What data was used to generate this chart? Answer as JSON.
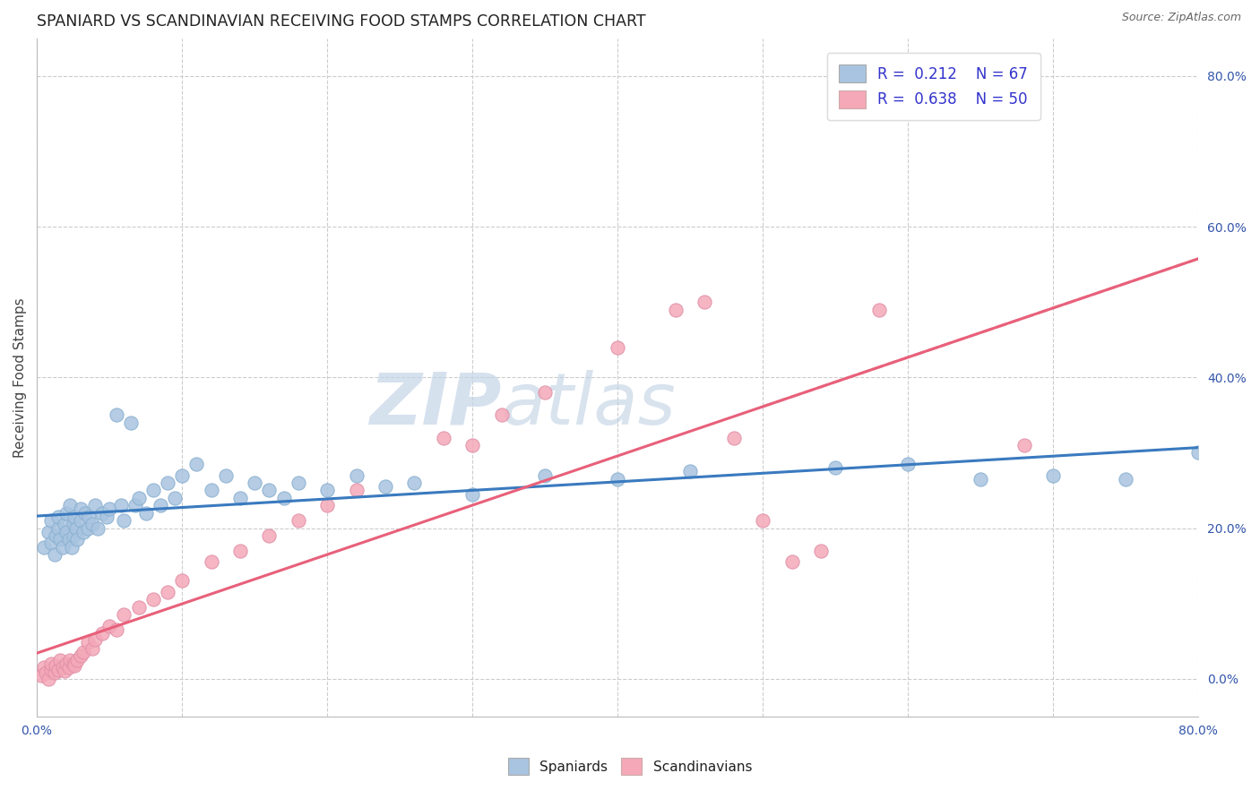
{
  "title": "SPANIARD VS SCANDINAVIAN RECEIVING FOOD STAMPS CORRELATION CHART",
  "source_text": "Source: ZipAtlas.com",
  "ylabel": "Receiving Food Stamps",
  "watermark": "ZIPatlas",
  "xmin": 0.0,
  "xmax": 0.8,
  "ymin": -0.05,
  "ymax": 0.85,
  "spaniard_color": "#a8c4e0",
  "scandinavian_color": "#f4a8b8",
  "spaniard_line_color": "#3a7abf",
  "scandinavian_line_color": "#e8607a",
  "spaniard_R": 0.212,
  "spaniard_N": 67,
  "scandinavian_R": 0.638,
  "scandinavian_N": 50,
  "legend_text_color": "#3333cc",
  "sp_x": [
    0.005,
    0.008,
    0.01,
    0.01,
    0.012,
    0.013,
    0.015,
    0.015,
    0.016,
    0.018,
    0.019,
    0.02,
    0.02,
    0.022,
    0.023,
    0.024,
    0.025,
    0.025,
    0.026,
    0.027,
    0.028,
    0.03,
    0.03,
    0.032,
    0.033,
    0.035,
    0.036,
    0.038,
    0.04,
    0.042,
    0.045,
    0.048,
    0.05,
    0.055,
    0.058,
    0.06,
    0.065,
    0.068,
    0.07,
    0.075,
    0.08,
    0.085,
    0.09,
    0.095,
    0.1,
    0.11,
    0.12,
    0.13,
    0.14,
    0.15,
    0.16,
    0.17,
    0.18,
    0.2,
    0.22,
    0.24,
    0.26,
    0.3,
    0.35,
    0.4,
    0.45,
    0.55,
    0.6,
    0.65,
    0.7,
    0.75,
    0.8
  ],
  "sp_y": [
    0.175,
    0.195,
    0.18,
    0.21,
    0.165,
    0.19,
    0.2,
    0.215,
    0.185,
    0.175,
    0.205,
    0.195,
    0.22,
    0.185,
    0.23,
    0.175,
    0.205,
    0.19,
    0.215,
    0.2,
    0.185,
    0.21,
    0.225,
    0.195,
    0.22,
    0.2,
    0.215,
    0.205,
    0.23,
    0.2,
    0.22,
    0.215,
    0.225,
    0.35,
    0.23,
    0.21,
    0.34,
    0.23,
    0.24,
    0.22,
    0.25,
    0.23,
    0.26,
    0.24,
    0.27,
    0.285,
    0.25,
    0.27,
    0.24,
    0.26,
    0.25,
    0.24,
    0.26,
    0.25,
    0.27,
    0.255,
    0.26,
    0.245,
    0.27,
    0.265,
    0.275,
    0.28,
    0.285,
    0.265,
    0.27,
    0.265,
    0.3
  ],
  "sc_x": [
    0.003,
    0.005,
    0.006,
    0.008,
    0.01,
    0.01,
    0.012,
    0.013,
    0.015,
    0.016,
    0.018,
    0.019,
    0.02,
    0.022,
    0.023,
    0.025,
    0.026,
    0.028,
    0.03,
    0.032,
    0.035,
    0.038,
    0.04,
    0.045,
    0.05,
    0.055,
    0.06,
    0.07,
    0.08,
    0.09,
    0.1,
    0.12,
    0.14,
    0.16,
    0.18,
    0.2,
    0.22,
    0.28,
    0.3,
    0.32,
    0.35,
    0.4,
    0.44,
    0.46,
    0.48,
    0.5,
    0.52,
    0.54,
    0.58,
    0.68
  ],
  "sc_y": [
    0.005,
    0.015,
    0.008,
    0.0,
    0.012,
    0.02,
    0.008,
    0.018,
    0.012,
    0.025,
    0.015,
    0.01,
    0.02,
    0.015,
    0.025,
    0.02,
    0.018,
    0.025,
    0.03,
    0.035,
    0.048,
    0.04,
    0.052,
    0.06,
    0.07,
    0.065,
    0.085,
    0.095,
    0.105,
    0.115,
    0.13,
    0.155,
    0.17,
    0.19,
    0.21,
    0.23,
    0.25,
    0.32,
    0.31,
    0.35,
    0.38,
    0.44,
    0.49,
    0.5,
    0.32,
    0.21,
    0.155,
    0.17,
    0.49,
    0.31
  ]
}
